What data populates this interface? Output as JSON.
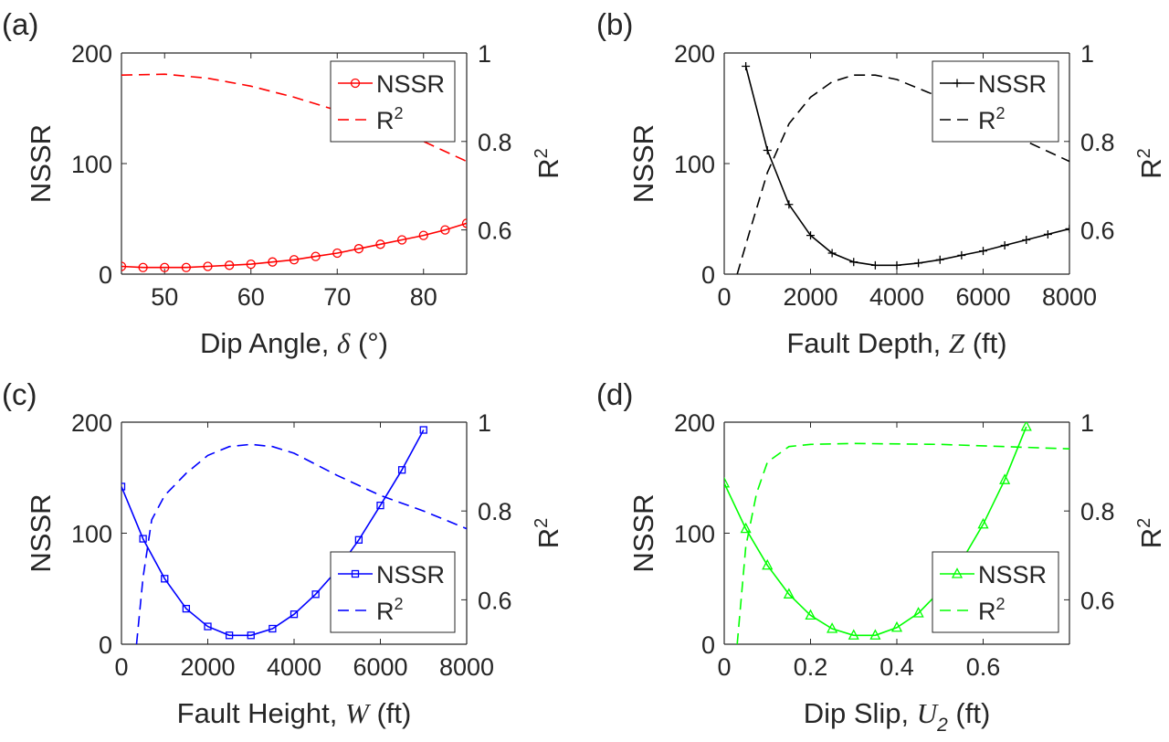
{
  "chart_data": [
    {
      "type": "line",
      "panel_label": "(a)",
      "xlabel": "Dip Angle,",
      "xlabel_sym": "δ",
      "xlabel_unit": "(°)",
      "ylabel": "NSSR",
      "y2label": "R",
      "y2label_sup": "2",
      "xlim": [
        45,
        85
      ],
      "ylim": [
        0,
        200
      ],
      "y2lim": [
        0.5,
        1.0
      ],
      "xticks": [
        50,
        60,
        70,
        80
      ],
      "yticks": [
        0,
        100,
        200
      ],
      "y2ticks": [
        0.6,
        0.8,
        1
      ],
      "color": "#ff0000",
      "marker": "circle",
      "legend_position": "top-right",
      "legend": [
        {
          "label": "NSSR"
        },
        {
          "label": "R",
          "sup": "2"
        }
      ],
      "series": [
        {
          "name": "NSSR",
          "axis": "left",
          "style": "solid",
          "markers": true,
          "x": [
            45,
            47.5,
            50,
            52.5,
            55,
            57.5,
            60,
            62.5,
            65,
            67.5,
            70,
            72.5,
            75,
            77.5,
            80,
            82.5,
            85
          ],
          "y": [
            7,
            6,
            6,
            6,
            7,
            8,
            9,
            11,
            13,
            16,
            19,
            23,
            27,
            31,
            35,
            40,
            46
          ]
        },
        {
          "name": "R2",
          "axis": "right",
          "style": "dashed",
          "markers": false,
          "x": [
            45,
            50,
            55,
            60,
            65,
            70,
            75,
            80,
            85
          ],
          "y": [
            0.95,
            0.952,
            0.943,
            0.925,
            0.9,
            0.87,
            0.84,
            0.8,
            0.755
          ]
        }
      ]
    },
    {
      "type": "line",
      "panel_label": "(b)",
      "xlabel": "Fault Depth,",
      "xlabel_sym": "Z",
      "xlabel_unit": "(ft)",
      "ylabel": "NSSR",
      "y2label": "R",
      "y2label_sup": "2",
      "xlim": [
        0,
        8000
      ],
      "ylim": [
        0,
        200
      ],
      "y2lim": [
        0.5,
        1.0
      ],
      "xticks": [
        0,
        2000,
        4000,
        6000,
        8000
      ],
      "yticks": [
        0,
        100,
        200
      ],
      "y2ticks": [
        0.6,
        0.8,
        1
      ],
      "color": "#000000",
      "marker": "plus",
      "legend_position": "top-right",
      "legend": [
        {
          "label": "NSSR"
        },
        {
          "label": "R",
          "sup": "2"
        }
      ],
      "series": [
        {
          "name": "NSSR",
          "axis": "left",
          "style": "solid",
          "markers": true,
          "x": [
            500,
            1000,
            1500,
            2000,
            2500,
            3000,
            3500,
            4000,
            4500,
            5000,
            5500,
            6000,
            6500,
            7000,
            7500,
            8000
          ],
          "y": [
            188,
            112,
            63,
            35,
            19,
            11,
            8,
            8,
            10,
            13,
            17,
            21,
            26,
            31,
            36,
            41
          ]
        },
        {
          "name": "R2",
          "axis": "right",
          "style": "dashed",
          "markers": false,
          "x": [
            300,
            600,
            1000,
            1500,
            2000,
            2500,
            3000,
            3500,
            4000,
            5000,
            6000,
            7000,
            8000
          ],
          "y": [
            0.5,
            0.6,
            0.73,
            0.84,
            0.9,
            0.935,
            0.95,
            0.95,
            0.94,
            0.9,
            0.85,
            0.8,
            0.755
          ]
        }
      ]
    },
    {
      "type": "line",
      "panel_label": "(c)",
      "xlabel": "Fault Height,",
      "xlabel_sym": "W",
      "xlabel_unit": "(ft)",
      "ylabel": "NSSR",
      "y2label": "R",
      "y2label_sup": "2",
      "xlim": [
        0,
        8000
      ],
      "ylim": [
        0,
        200
      ],
      "y2lim": [
        0.5,
        1.0
      ],
      "xticks": [
        0,
        2000,
        4000,
        6000,
        8000
      ],
      "yticks": [
        0,
        100,
        200
      ],
      "y2ticks": [
        0.6,
        0.8,
        1
      ],
      "color": "#0000ff",
      "marker": "square",
      "legend_position": "bottom-right",
      "legend": [
        {
          "label": "NSSR"
        },
        {
          "label": "R",
          "sup": "2"
        }
      ],
      "series": [
        {
          "name": "NSSR",
          "axis": "left",
          "style": "solid",
          "markers": true,
          "x": [
            0,
            500,
            1000,
            1500,
            2000,
            2500,
            3000,
            3500,
            4000,
            4500,
            5000,
            5500,
            6000,
            6500,
            7000
          ],
          "y": [
            142,
            95,
            59,
            32,
            16,
            8,
            8,
            14,
            27,
            45,
            67,
            94,
            125,
            157,
            193
          ]
        },
        {
          "name": "R2",
          "axis": "right",
          "style": "dashed",
          "markers": false,
          "x": [
            350,
            500,
            700,
            1000,
            1500,
            2000,
            2500,
            3000,
            3500,
            4000,
            5000,
            6000,
            7000,
            8000
          ],
          "y": [
            0.5,
            0.65,
            0.78,
            0.835,
            0.885,
            0.925,
            0.945,
            0.95,
            0.945,
            0.93,
            0.88,
            0.835,
            0.8,
            0.76
          ]
        }
      ]
    },
    {
      "type": "line",
      "panel_label": "(d)",
      "xlabel": "Dip Slip,",
      "xlabel_sym": "U",
      "xlabel_sub": "2",
      "xlabel_unit": "(ft)",
      "ylabel": "NSSR",
      "y2label": "R",
      "y2label_sup": "2",
      "xlim": [
        0,
        0.8
      ],
      "ylim": [
        0,
        200
      ],
      "y2lim": [
        0.5,
        1.0
      ],
      "xticks": [
        0,
        0.2,
        0.4,
        0.6
      ],
      "yticks": [
        0,
        100,
        200
      ],
      "y2ticks": [
        0.6,
        0.8,
        1
      ],
      "color": "#00ff00",
      "marker": "triangle",
      "legend_position": "bottom-right",
      "legend": [
        {
          "label": "NSSR"
        },
        {
          "label": "R",
          "sup": "2"
        }
      ],
      "series": [
        {
          "name": "NSSR",
          "axis": "left",
          "style": "solid",
          "markers": true,
          "x": [
            0,
            0.05,
            0.1,
            0.15,
            0.2,
            0.25,
            0.3,
            0.35,
            0.4,
            0.45,
            0.5,
            0.55,
            0.6,
            0.65,
            0.7
          ],
          "y": [
            145,
            104,
            71,
            45,
            26,
            14,
            8,
            8,
            15,
            28,
            48,
            75,
            108,
            148,
            196
          ]
        },
        {
          "name": "R2",
          "axis": "right",
          "style": "dashed",
          "markers": false,
          "x": [
            0.03,
            0.05,
            0.075,
            0.1,
            0.15,
            0.2,
            0.3,
            0.5,
            0.8
          ],
          "y": [
            0.5,
            0.72,
            0.84,
            0.91,
            0.945,
            0.95,
            0.952,
            0.95,
            0.94
          ]
        }
      ]
    }
  ]
}
